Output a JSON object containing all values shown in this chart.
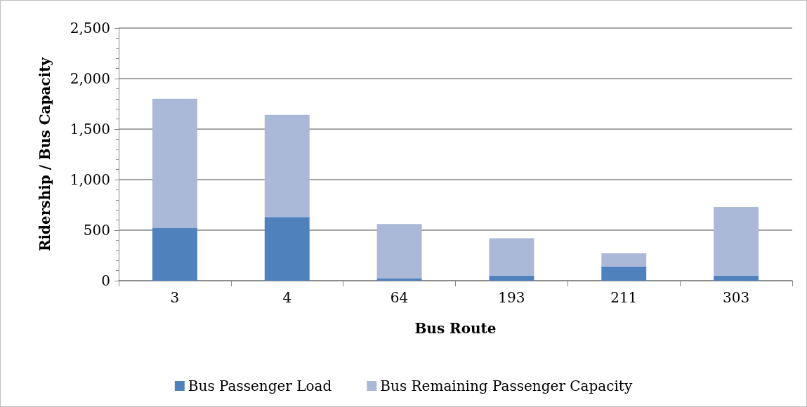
{
  "chart_data": {
    "type": "bar",
    "stacked": true,
    "xlabel": "Bus Route",
    "ylabel": "Ridership / Bus Capacity",
    "categories": [
      "3",
      "4",
      "64",
      "193",
      "211",
      "303"
    ],
    "series": [
      {
        "name": "Bus Passenger Load",
        "color": "#4f81bd",
        "values": [
          520,
          630,
          20,
          50,
          140,
          50
        ]
      },
      {
        "name": "Bus Remaining Passenger Capacity",
        "color": "#aab9d7",
        "values": [
          1280,
          1010,
          540,
          370,
          130,
          680
        ]
      }
    ],
    "ylim": [
      0,
      2500
    ],
    "yticks": [
      {
        "value": 0,
        "label": "0"
      },
      {
        "value": 500,
        "label": "500"
      },
      {
        "value": 1000,
        "label": "1,000"
      },
      {
        "value": 1500,
        "label": "1,500"
      },
      {
        "value": 2000,
        "label": "2,000"
      },
      {
        "value": 2500,
        "label": "2,500"
      }
    ],
    "grid": "y",
    "legend": "bottom"
  }
}
